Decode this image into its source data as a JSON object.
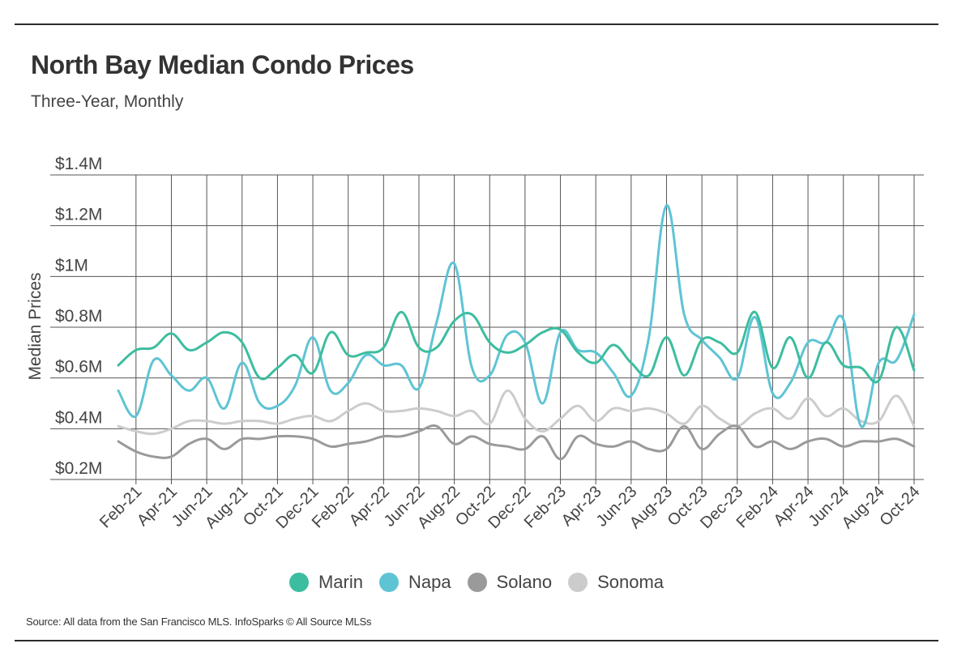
{
  "header": {
    "title": "North Bay Median Condo Prices",
    "subtitle": "Three-Year, Monthly"
  },
  "footer": {
    "source": "Source:  All data from the San Francisco MLS. InfoSparks © All Source MLSs"
  },
  "chart_data": {
    "type": "line",
    "ylabel": "Median Prices",
    "xlabel": "",
    "ylim": [
      200000,
      1400000
    ],
    "yticks": [
      {
        "value": 200000,
        "label": "$0.2M"
      },
      {
        "value": 400000,
        "label": "$0.4M"
      },
      {
        "value": 600000,
        "label": "$0.6M"
      },
      {
        "value": 800000,
        "label": "$0.8M"
      },
      {
        "value": 1000000,
        "label": "$1M"
      },
      {
        "value": 1200000,
        "label": "$1.2M"
      },
      {
        "value": 1400000,
        "label": "$1.4M"
      }
    ],
    "grid": true,
    "legend_position": "bottom",
    "x": [
      "Jan-21",
      "Feb-21",
      "Mar-21",
      "Apr-21",
      "May-21",
      "Jun-21",
      "Jul-21",
      "Aug-21",
      "Sep-21",
      "Oct-21",
      "Nov-21",
      "Dec-21",
      "Jan-22",
      "Feb-22",
      "Mar-22",
      "Apr-22",
      "May-22",
      "Jun-22",
      "Jul-22",
      "Aug-22",
      "Sep-22",
      "Oct-22",
      "Nov-22",
      "Dec-22",
      "Jan-23",
      "Feb-23",
      "Mar-23",
      "Apr-23",
      "May-23",
      "Jun-23",
      "Jul-23",
      "Aug-23",
      "Sep-23",
      "Oct-23",
      "Nov-23",
      "Dec-23",
      "Jan-24",
      "Feb-24",
      "Mar-24",
      "Apr-24",
      "May-24",
      "Jun-24",
      "Jul-24",
      "Aug-24",
      "Sep-24",
      "Oct-24"
    ],
    "xtick_labels": [
      "Feb-21",
      "Apr-21",
      "Jun-21",
      "Aug-21",
      "Oct-21",
      "Dec-21",
      "Feb-22",
      "Apr-22",
      "Jun-22",
      "Aug-22",
      "Oct-22",
      "Dec-22",
      "Feb-23",
      "Apr-23",
      "Jun-23",
      "Aug-23",
      "Oct-23",
      "Dec-23",
      "Feb-24",
      "Apr-24",
      "Jun-24",
      "Aug-24",
      "Oct-24"
    ],
    "series": [
      {
        "name": "Marin",
        "color": "#3dbd9f",
        "values": [
          650000,
          710000,
          720000,
          775000,
          710000,
          740000,
          780000,
          740000,
          600000,
          640000,
          690000,
          620000,
          780000,
          690000,
          700000,
          720000,
          860000,
          720000,
          720000,
          825000,
          850000,
          740000,
          700000,
          730000,
          780000,
          790000,
          700000,
          660000,
          730000,
          660000,
          610000,
          760000,
          610000,
          750000,
          740000,
          700000,
          860000,
          640000,
          760000,
          600000,
          740000,
          650000,
          640000,
          590000,
          800000,
          630000
        ]
      },
      {
        "name": "Napa",
        "color": "#5ec4d4",
        "values": [
          550000,
          450000,
          670000,
          610000,
          550000,
          600000,
          480000,
          660000,
          500000,
          490000,
          570000,
          760000,
          550000,
          580000,
          690000,
          650000,
          650000,
          560000,
          820000,
          1050000,
          640000,
          610000,
          770000,
          740000,
          500000,
          780000,
          710000,
          700000,
          620000,
          530000,
          760000,
          1280000,
          850000,
          750000,
          680000,
          600000,
          840000,
          540000,
          580000,
          740000,
          740000,
          830000,
          410000,
          660000,
          670000,
          850000
        ]
      },
      {
        "name": "Solano",
        "color": "#9a9a9a",
        "values": [
          350000,
          310000,
          290000,
          290000,
          340000,
          360000,
          320000,
          360000,
          360000,
          370000,
          370000,
          360000,
          330000,
          340000,
          350000,
          370000,
          370000,
          390000,
          410000,
          340000,
          370000,
          340000,
          330000,
          320000,
          370000,
          280000,
          370000,
          340000,
          330000,
          350000,
          320000,
          320000,
          410000,
          320000,
          380000,
          410000,
          330000,
          350000,
          320000,
          350000,
          360000,
          330000,
          350000,
          350000,
          360000,
          330000
        ]
      },
      {
        "name": "Sonoma",
        "color": "#cccccc",
        "values": [
          410000,
          390000,
          380000,
          400000,
          430000,
          430000,
          420000,
          430000,
          430000,
          420000,
          440000,
          450000,
          430000,
          470000,
          500000,
          470000,
          470000,
          480000,
          470000,
          450000,
          470000,
          420000,
          550000,
          440000,
          390000,
          440000,
          490000,
          430000,
          480000,
          470000,
          480000,
          460000,
          420000,
          490000,
          440000,
          410000,
          460000,
          480000,
          440000,
          520000,
          450000,
          480000,
          430000,
          430000,
          530000,
          410000
        ]
      }
    ]
  }
}
